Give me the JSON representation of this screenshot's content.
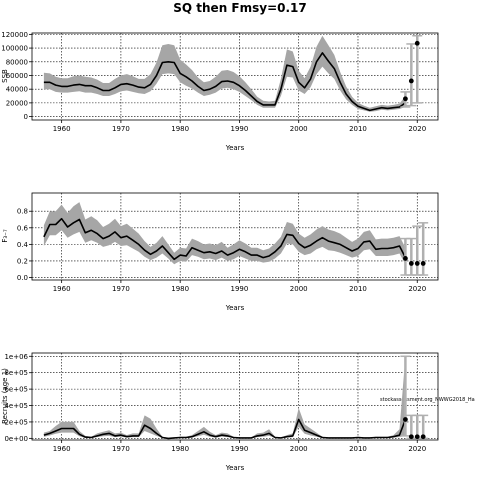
{
  "title": "SQ then Fmsy=0.17",
  "chart_data": [
    {
      "type": "line",
      "xlabel": "Years",
      "ylabel": "SSB",
      "xlim": [
        1955,
        2023.5
      ],
      "ylim": [
        -5000,
        122000
      ],
      "xticks": [
        1960,
        1970,
        1980,
        1990,
        2000,
        2010,
        2020
      ],
      "yticks": [
        0,
        20000,
        40000,
        60000,
        80000,
        100000,
        120000
      ],
      "ytick_labels": [
        "0",
        "20000",
        "40000",
        "60000",
        "80000",
        "100000",
        "120000"
      ],
      "grid": true,
      "x": [
        1957,
        1958,
        1959,
        1960,
        1961,
        1962,
        1963,
        1964,
        1965,
        1966,
        1967,
        1968,
        1969,
        1970,
        1971,
        1972,
        1973,
        1974,
        1975,
        1976,
        1977,
        1978,
        1979,
        1980,
        1981,
        1982,
        1983,
        1984,
        1985,
        1986,
        1987,
        1988,
        1989,
        1990,
        1991,
        1992,
        1993,
        1994,
        1995,
        1996,
        1997,
        1998,
        1999,
        2000,
        2001,
        2002,
        2003,
        2004,
        2005,
        2006,
        2007,
        2008,
        2009,
        2010,
        2011,
        2012,
        2013,
        2014,
        2015,
        2016,
        2017,
        2018
      ],
      "series": [
        {
          "values": [
            50000,
            50000,
            46000,
            44000,
            44000,
            46000,
            47000,
            45000,
            45000,
            42000,
            38000,
            38000,
            42000,
            47000,
            48000,
            46000,
            43000,
            42000,
            47000,
            60000,
            79000,
            80000,
            79000,
            63000,
            58000,
            52000,
            44000,
            38000,
            40000,
            44000,
            51000,
            52000,
            50000,
            45000,
            38000,
            30000,
            22000,
            17000,
            17000,
            17000,
            40000,
            75000,
            73000,
            50000,
            42000,
            55000,
            80000,
            93000,
            81000,
            70000,
            50000,
            33000,
            22000,
            15000,
            12000,
            9000,
            11000,
            13000,
            12000,
            13000,
            14000,
            20000
          ]
        },
        {
          "values": [
            64000,
            63000,
            58000,
            56000,
            56000,
            59000,
            60000,
            58000,
            57000,
            54000,
            49000,
            49000,
            55000,
            60000,
            62000,
            59000,
            55000,
            55000,
            62000,
            79000,
            104000,
            106000,
            104000,
            83000,
            76000,
            68000,
            57000,
            50000,
            52000,
            58000,
            67000,
            68000,
            65000,
            59000,
            50000,
            40000,
            29000,
            23000,
            22000,
            23000,
            55000,
            98000,
            95000,
            67000,
            56000,
            73000,
            102000,
            118000,
            104000,
            90000,
            65000,
            44000,
            29000,
            20000,
            16000,
            13000,
            15000,
            17000,
            16000,
            17000,
            19000,
            30000
          ]
        },
        {
          "values": [
            40000,
            40000,
            36000,
            35000,
            35000,
            36000,
            37000,
            35000,
            35000,
            33000,
            30000,
            30000,
            33000,
            37000,
            38000,
            36000,
            34000,
            33000,
            37000,
            48000,
            62000,
            63000,
            62000,
            50000,
            45000,
            41000,
            35000,
            30000,
            32000,
            35000,
            41000,
            42000,
            40000,
            36000,
            30000,
            24000,
            17000,
            13000,
            13000,
            13000,
            30000,
            58000,
            57000,
            38000,
            33000,
            43000,
            62000,
            73000,
            63000,
            55000,
            38000,
            25000,
            17000,
            11000,
            9000,
            7000,
            8000,
            10000,
            9000,
            10000,
            11000,
            14000
          ]
        }
      ],
      "forecast": {
        "x": [
          2018,
          2019,
          2020
        ],
        "values": [
          26000,
          52000,
          107000
        ],
        "low": [
          14000,
          16000,
          20000
        ],
        "high": [
          36000,
          106000,
          118000
        ]
      }
    },
    {
      "type": "line",
      "xlabel": "Years",
      "ylabel": "F₃₋₇",
      "xlim": [
        1955,
        2023.5
      ],
      "ylim": [
        -0.03,
        1.02
      ],
      "xticks": [
        1960,
        1970,
        1980,
        1990,
        2000,
        2010,
        2020
      ],
      "yticks": [
        0.0,
        0.2,
        0.4,
        0.6,
        0.8
      ],
      "ytick_labels": [
        "0.0",
        "0.2",
        "0.4",
        "0.6",
        "0.8"
      ],
      "grid": true,
      "x": [
        1957,
        1958,
        1959,
        1960,
        1961,
        1962,
        1963,
        1964,
        1965,
        1966,
        1967,
        1968,
        1969,
        1970,
        1971,
        1972,
        1973,
        1974,
        1975,
        1976,
        1977,
        1978,
        1979,
        1980,
        1981,
        1982,
        1983,
        1984,
        1985,
        1986,
        1987,
        1988,
        1989,
        1990,
        1991,
        1992,
        1993,
        1994,
        1995,
        1996,
        1997,
        1998,
        1999,
        2000,
        2001,
        2002,
        2003,
        2004,
        2005,
        2006,
        2007,
        2008,
        2009,
        2010,
        2011,
        2012,
        2013,
        2014,
        2015,
        2016,
        2017,
        2018
      ],
      "series": [
        {
          "values": [
            0.49,
            0.64,
            0.64,
            0.71,
            0.61,
            0.66,
            0.7,
            0.54,
            0.57,
            0.53,
            0.47,
            0.5,
            0.55,
            0.48,
            0.5,
            0.45,
            0.4,
            0.33,
            0.28,
            0.32,
            0.38,
            0.3,
            0.22,
            0.27,
            0.26,
            0.36,
            0.33,
            0.3,
            0.31,
            0.29,
            0.32,
            0.27,
            0.3,
            0.34,
            0.31,
            0.27,
            0.27,
            0.24,
            0.26,
            0.31,
            0.38,
            0.52,
            0.51,
            0.41,
            0.36,
            0.39,
            0.44,
            0.48,
            0.44,
            0.42,
            0.4,
            0.36,
            0.32,
            0.35,
            0.43,
            0.44,
            0.34,
            0.35,
            0.35,
            0.36,
            0.38,
            0.24
          ]
        },
        {
          "values": [
            0.63,
            0.8,
            0.8,
            0.88,
            0.78,
            0.86,
            0.91,
            0.7,
            0.74,
            0.69,
            0.61,
            0.65,
            0.71,
            0.62,
            0.65,
            0.59,
            0.53,
            0.44,
            0.37,
            0.42,
            0.5,
            0.4,
            0.3,
            0.36,
            0.35,
            0.47,
            0.44,
            0.4,
            0.41,
            0.39,
            0.43,
            0.36,
            0.4,
            0.45,
            0.41,
            0.36,
            0.36,
            0.33,
            0.35,
            0.41,
            0.49,
            0.67,
            0.65,
            0.53,
            0.48,
            0.52,
            0.58,
            0.62,
            0.58,
            0.56,
            0.53,
            0.48,
            0.43,
            0.47,
            0.55,
            0.57,
            0.46,
            0.47,
            0.47,
            0.48,
            0.5,
            0.36
          ]
        },
        {
          "values": [
            0.38,
            0.51,
            0.51,
            0.57,
            0.48,
            0.52,
            0.55,
            0.42,
            0.45,
            0.42,
            0.37,
            0.39,
            0.43,
            0.38,
            0.39,
            0.35,
            0.31,
            0.25,
            0.21,
            0.24,
            0.29,
            0.23,
            0.16,
            0.2,
            0.19,
            0.27,
            0.25,
            0.22,
            0.23,
            0.21,
            0.24,
            0.2,
            0.22,
            0.26,
            0.23,
            0.2,
            0.2,
            0.18,
            0.19,
            0.23,
            0.29,
            0.41,
            0.4,
            0.31,
            0.27,
            0.29,
            0.34,
            0.37,
            0.33,
            0.32,
            0.3,
            0.27,
            0.24,
            0.26,
            0.33,
            0.34,
            0.26,
            0.26,
            0.26,
            0.27,
            0.29,
            0.16
          ]
        }
      ],
      "forecast": {
        "x": [
          2018,
          2019,
          2020,
          2021
        ],
        "values": [
          0.23,
          0.17,
          0.17,
          0.17
        ],
        "low": [
          0.03,
          0.03,
          0.03,
          0.03
        ],
        "high": [
          0.47,
          0.47,
          0.62,
          0.66
        ]
      }
    },
    {
      "type": "line",
      "xlabel": "Years",
      "ylabel": "Recruits (age 1)",
      "xlim": [
        1955,
        2023.5
      ],
      "ylim": [
        -20000,
        1040000
      ],
      "xticks": [
        1960,
        1970,
        1980,
        1990,
        2000,
        2010,
        2020
      ],
      "yticks": [
        0,
        200000,
        400000,
        600000,
        800000,
        1000000
      ],
      "ytick_labels": [
        "0e+00",
        "2e+05",
        "4e+05",
        "6e+05",
        "8e+05",
        "1e+06"
      ],
      "grid": true,
      "annotation": "stockassessment.org_NWWG2018_Ha",
      "x": [
        1957,
        1958,
        1959,
        1960,
        1961,
        1962,
        1963,
        1964,
        1965,
        1966,
        1967,
        1968,
        1969,
        1970,
        1971,
        1972,
        1973,
        1974,
        1975,
        1976,
        1977,
        1978,
        1979,
        1980,
        1981,
        1982,
        1983,
        1984,
        1985,
        1986,
        1987,
        1988,
        1989,
        1990,
        1991,
        1992,
        1993,
        1994,
        1995,
        1996,
        1997,
        1998,
        1999,
        2000,
        2001,
        2002,
        2003,
        2004,
        2005,
        2006,
        2007,
        2008,
        2009,
        2010,
        2011,
        2012,
        2013,
        2014,
        2015,
        2016,
        2017,
        2018
      ],
      "series": [
        {
          "values": [
            40000,
            60000,
            90000,
            120000,
            120000,
            120000,
            50000,
            15000,
            10000,
            30000,
            50000,
            60000,
            30000,
            40000,
            20000,
            30000,
            30000,
            160000,
            120000,
            60000,
            10000,
            0,
            5000,
            10000,
            10000,
            20000,
            50000,
            80000,
            40000,
            20000,
            40000,
            30000,
            10000,
            5000,
            5000,
            5000,
            30000,
            40000,
            60000,
            10000,
            5000,
            20000,
            30000,
            230000,
            100000,
            70000,
            40000,
            10000,
            5000,
            5000,
            5000,
            5000,
            5000,
            10000,
            5000,
            5000,
            10000,
            10000,
            10000,
            20000,
            40000,
            230000
          ]
        },
        {
          "values": [
            70000,
            90000,
            150000,
            200000,
            200000,
            200000,
            90000,
            30000,
            20000,
            60000,
            80000,
            100000,
            60000,
            70000,
            40000,
            60000,
            60000,
            280000,
            240000,
            120000,
            20000,
            5000,
            10000,
            20000,
            20000,
            40000,
            90000,
            140000,
            80000,
            40000,
            70000,
            60000,
            20000,
            10000,
            10000,
            10000,
            60000,
            70000,
            110000,
            20000,
            10000,
            40000,
            60000,
            370000,
            170000,
            120000,
            70000,
            20000,
            10000,
            10000,
            10000,
            10000,
            10000,
            20000,
            10000,
            10000,
            20000,
            20000,
            20000,
            40000,
            110000,
            1000000
          ]
        },
        {
          "values": [
            20000,
            35000,
            55000,
            70000,
            70000,
            70000,
            25000,
            5000,
            5000,
            15000,
            25000,
            30000,
            15000,
            20000,
            10000,
            15000,
            15000,
            90000,
            60000,
            30000,
            5000,
            0,
            0,
            5000,
            5000,
            10000,
            25000,
            45000,
            20000,
            10000,
            20000,
            15000,
            5000,
            0,
            0,
            0,
            15000,
            20000,
            30000,
            5000,
            0,
            10000,
            15000,
            140000,
            55000,
            35000,
            20000,
            5000,
            0,
            0,
            0,
            0,
            0,
            5000,
            0,
            0,
            5000,
            5000,
            5000,
            10000,
            15000,
            30000
          ]
        }
      ],
      "forecast": {
        "x": [
          2018,
          2019,
          2020,
          2021
        ],
        "values": [
          230000,
          20000,
          20000,
          20000
        ],
        "low": [
          30000,
          0,
          0,
          0
        ],
        "high": [
          1000000,
          280000,
          280000,
          280000
        ]
      }
    }
  ]
}
